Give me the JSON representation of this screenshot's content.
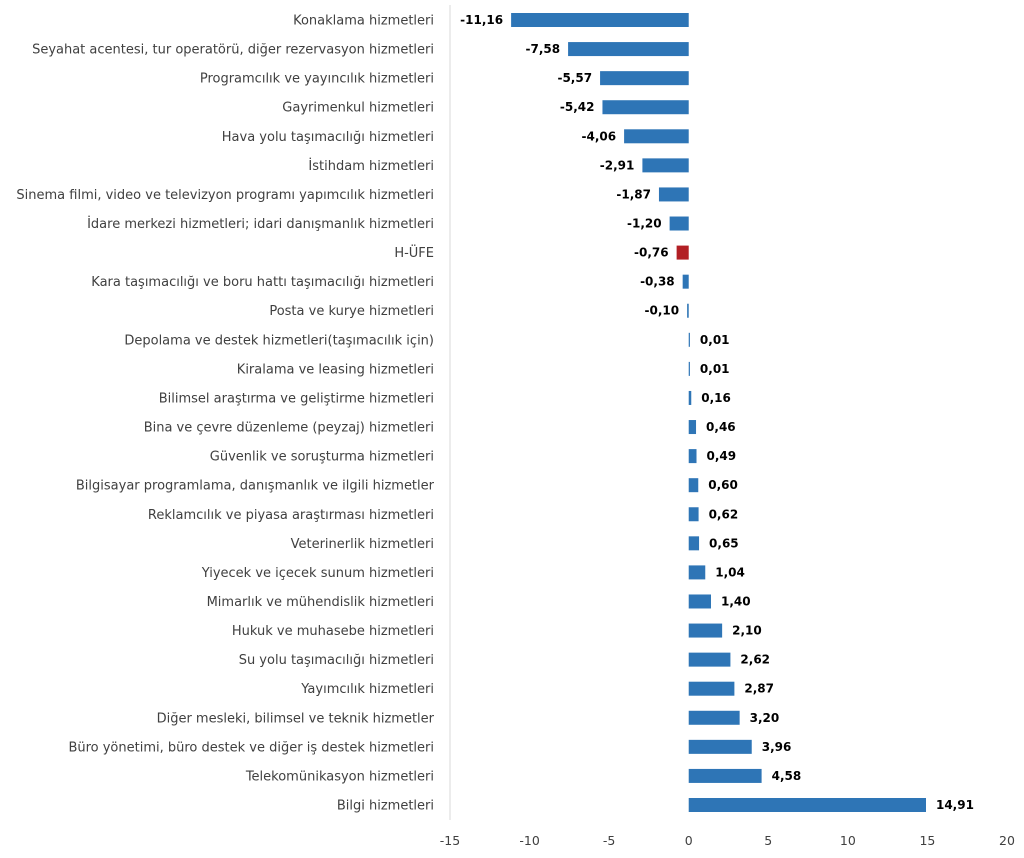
{
  "chart_data": {
    "type": "bar",
    "orientation": "horizontal",
    "title": "",
    "xlabel": "",
    "ylabel": "",
    "xlim": [
      -15,
      20
    ],
    "xticks": [
      -15,
      -10,
      -5,
      0,
      5,
      10,
      15,
      20
    ],
    "grid": false,
    "categories": [
      "Konaklama hizmetleri",
      "Seyahat acentesi, tur operatörü, diğer rezervasyon hizmetleri",
      "Programcılık ve yayıncılık hizmetleri",
      "Gayrimenkul hizmetleri",
      "Hava yolu taşımacılığı hizmetleri",
      "İstihdam hizmetleri",
      "Sinema filmi, video ve televizyon programı yapımcılık hizmetleri",
      "İdare merkezi hizmetleri; idari danışmanlık hizmetleri",
      "H-ÜFE",
      "Kara taşımacılığı ve boru hattı taşımacılığı hizmetleri",
      "Posta ve kurye hizmetleri",
      "Depolama ve destek hizmetleri(taşımacılık için)",
      "Kiralama ve leasing hizmetleri",
      "Bilimsel araştırma ve geliştirme hizmetleri",
      "Bina ve çevre düzenleme (peyzaj) hizmetleri",
      "Güvenlik ve soruşturma hizmetleri",
      "Bilgisayar programlama, danışmanlık ve ilgili hizmetler",
      "Reklamcılık ve piyasa araştırması hizmetleri",
      "Veterinerlik hizmetleri",
      "Yiyecek ve içecek sunum hizmetleri",
      "Mimarlık ve mühendislik hizmetleri",
      "Hukuk ve muhasebe hizmetleri",
      "Su yolu taşımacılığı hizmetleri",
      "Yayımcılık hizmetleri",
      "Diğer mesleki, bilimsel ve teknik hizmetler",
      "Büro yönetimi, büro destek ve diğer iş destek hizmetleri",
      "Telekomünikasyon hizmetleri",
      "Bilgi hizmetleri"
    ],
    "values": [
      -11.16,
      -7.58,
      -5.57,
      -5.42,
      -4.06,
      -2.91,
      -1.87,
      -1.2,
      -0.76,
      -0.38,
      -0.1,
      0.01,
      0.01,
      0.16,
      0.46,
      0.49,
      0.6,
      0.62,
      0.65,
      1.04,
      1.4,
      2.1,
      2.62,
      2.87,
      3.2,
      3.96,
      4.58,
      14.91
    ],
    "value_labels": [
      "-11,16",
      "-7,58",
      "-5,57",
      "-5,42",
      "-4,06",
      "-2,91",
      "-1,87",
      "-1,20",
      "-0,76",
      "-0,38",
      "-0,10",
      "0,01",
      "0,01",
      "0,16",
      "0,46",
      "0,49",
      "0,60",
      "0,62",
      "0,65",
      "1,04",
      "1,40",
      "2,10",
      "2,62",
      "2,87",
      "3,20",
      "3,96",
      "4,58",
      "14,91"
    ],
    "highlight_index": 8,
    "colors": {
      "bar": "#2E75B6",
      "highlight": "#B21F24",
      "axis": "#D9D9D9"
    }
  }
}
